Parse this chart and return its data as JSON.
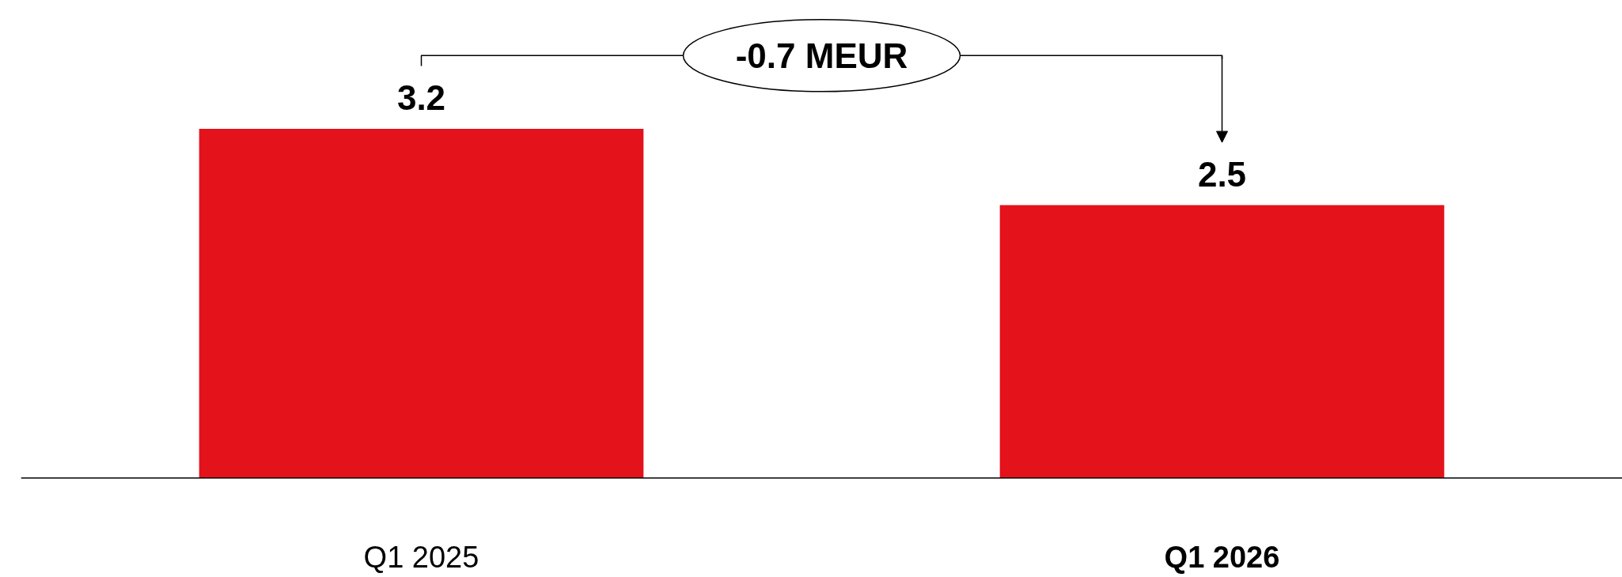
{
  "chart_data": {
    "type": "bar",
    "categories": [
      "Q1 2025",
      "Q1 2026"
    ],
    "values": [
      3.2,
      2.5
    ],
    "color": "#e3121b",
    "data_labels": true,
    "annotations": [
      "-0.7 MEUR"
    ]
  }
}
